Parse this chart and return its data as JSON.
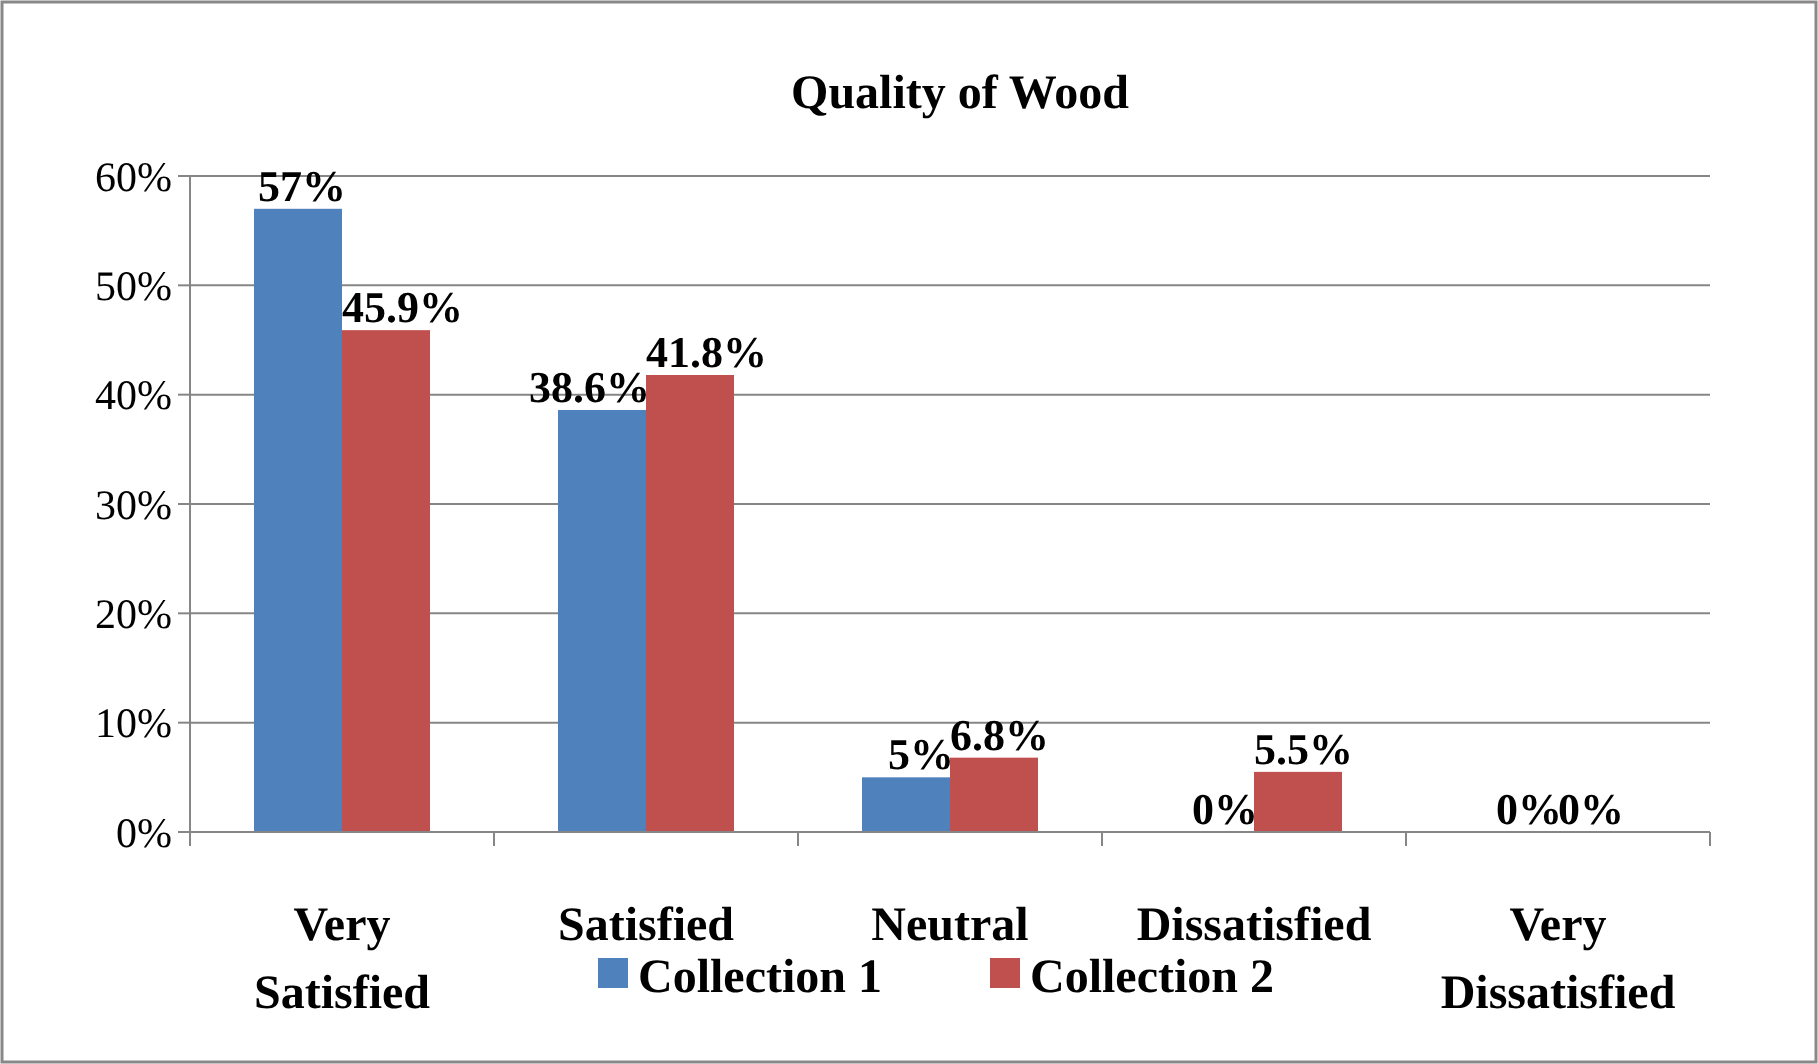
{
  "chart_data": {
    "type": "bar",
    "title": "Quality of Wood",
    "categories": [
      "Very Satisfied",
      "Satisfied",
      "Neutral",
      "Dissatisfied",
      "Very Dissatisfied"
    ],
    "series": [
      {
        "name": "Collection 1",
        "color": "#4f81bd",
        "values": [
          57,
          38.6,
          5,
          0,
          0
        ],
        "value_labels": [
          "57%",
          "38.6%",
          "5%",
          "0%",
          "0%"
        ]
      },
      {
        "name": "Collection 2",
        "color": "#c0504d",
        "values": [
          45.9,
          41.8,
          6.8,
          5.5,
          0
        ],
        "value_labels": [
          "45.9%",
          "41.8%",
          "6.8%",
          "5.5%",
          "0%"
        ]
      }
    ],
    "ylim": [
      0,
      60
    ],
    "yticks": [
      {
        "value": 0,
        "label": "0%"
      },
      {
        "value": 10,
        "label": "10%"
      },
      {
        "value": 20,
        "label": "20%"
      },
      {
        "value": 30,
        "label": "30%"
      },
      {
        "value": 40,
        "label": "40%"
      },
      {
        "value": 50,
        "label": "50%"
      },
      {
        "value": 60,
        "label": "60%"
      }
    ],
    "grid": "y",
    "legend": "bottom"
  }
}
